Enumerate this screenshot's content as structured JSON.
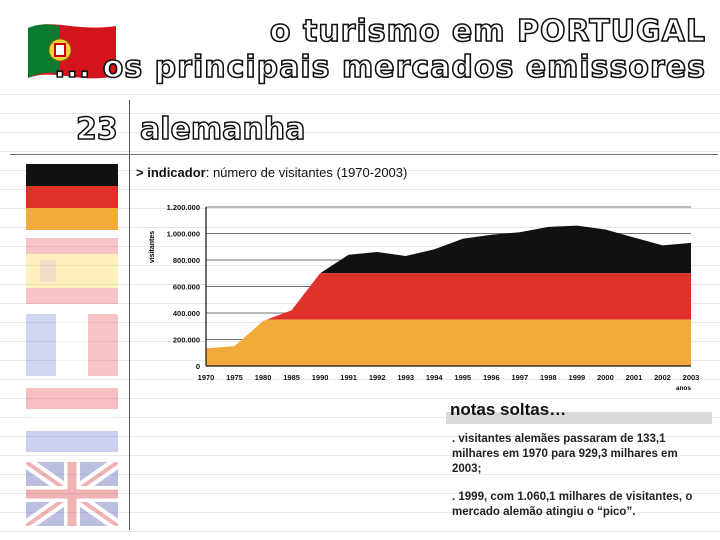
{
  "header": {
    "title_line1": "o turismo em PORTUGAL",
    "title_line2": "... os principais mercados emissores"
  },
  "section": {
    "number": "23",
    "name": "alemanha"
  },
  "indicator": {
    "label": "> indicador",
    "text": ": número de visitantes (1970-2003)"
  },
  "chart_data": {
    "type": "area",
    "ylabel": "visitantes",
    "xlabel": "anos",
    "x": [
      1970,
      1975,
      1980,
      1985,
      1990,
      1991,
      1992,
      1993,
      1994,
      1995,
      1996,
      1997,
      1998,
      1999,
      2000,
      2001,
      2002,
      2003
    ],
    "values": [
      133.1,
      150,
      340,
      420,
      700,
      840,
      860,
      830,
      880,
      960,
      990,
      1010,
      1050,
      1060,
      1030,
      970,
      910,
      929.3
    ],
    "value_units": "milhares",
    "ylim": [
      0,
      1200000
    ],
    "yticks": [
      "0",
      "200.000",
      "400.000",
      "600.000",
      "800.000",
      "1.000.000",
      "1.200.000"
    ],
    "xtick_labels": [
      "1970",
      "1975",
      "1980",
      "1985",
      "1990",
      "1991",
      "1992",
      "1993",
      "1994",
      "1995",
      "1996",
      "1997",
      "1998",
      "1999",
      "2000",
      "2001",
      "2002",
      "2003"
    ],
    "fill_bands_colors": [
      "#f0ab3c",
      "#e0302a",
      "#111111"
    ],
    "grid": true
  },
  "notes": {
    "title": "notas soltas…",
    "items": [
      ". visitantes alemães passaram de 133,1 milhares em 1970 para 929,3 milhares em 2003;",
      ". 1999, com 1.060,1 milhares de visitantes, o mercado alemão atingiu o “pico”."
    ]
  },
  "colors": {
    "accent": "#e0302a",
    "band_gold": "#f0ab3c",
    "band_black": "#111111",
    "rule_lines": "#cfd6e4"
  }
}
